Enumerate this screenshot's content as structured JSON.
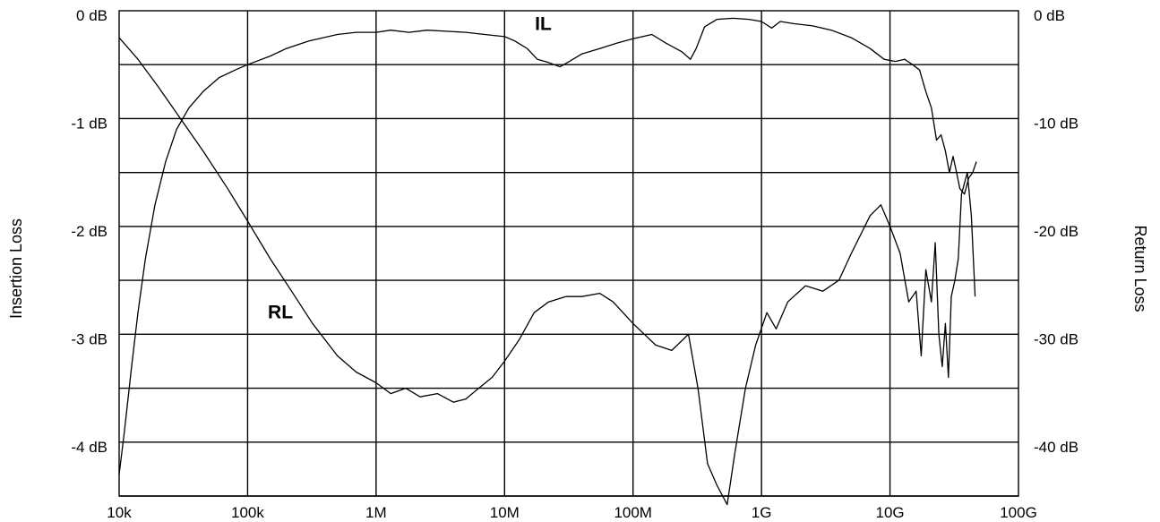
{
  "chart_data": {
    "type": "line",
    "xscale": "log",
    "xlim": [
      10000,
      100000000000
    ],
    "x_ticks": [
      10000,
      100000,
      1000000,
      10000000,
      100000000,
      1000000000,
      10000000000,
      100000000000
    ],
    "x_tick_labels": [
      "10k",
      "100k",
      "1M",
      "10M",
      "100M",
      "1G",
      "10G",
      "100G"
    ],
    "left_axis": {
      "label": "Insertion Loss",
      "ylim": [
        -4.5,
        0
      ],
      "ticks": [
        0,
        -1,
        -2,
        -3,
        -4
      ],
      "tick_labels": [
        "0 dB",
        "-1 dB",
        "-2 dB",
        "-3 dB",
        "-4 dB"
      ]
    },
    "right_axis": {
      "label": "Return Loss",
      "ylim": [
        -45,
        0
      ],
      "ticks": [
        0,
        -10,
        -20,
        -30,
        -40
      ],
      "tick_labels": [
        "0 dB",
        "-10 dB",
        "-20 dB",
        "-30 dB",
        "-40 dB"
      ]
    },
    "grid": true,
    "series": [
      {
        "name": "IL",
        "axis": "left",
        "label_at": [
          20000000,
          -0.18
        ],
        "points": [
          [
            10000,
            -4.3
          ],
          [
            11000,
            -3.9
          ],
          [
            12500,
            -3.3
          ],
          [
            14000,
            -2.8
          ],
          [
            16000,
            -2.3
          ],
          [
            19000,
            -1.8
          ],
          [
            23000,
            -1.4
          ],
          [
            28000,
            -1.1
          ],
          [
            35000,
            -0.9
          ],
          [
            45000,
            -0.75
          ],
          [
            60000,
            -0.62
          ],
          [
            80000,
            -0.55
          ],
          [
            100000,
            -0.5
          ],
          [
            150000,
            -0.42
          ],
          [
            200000,
            -0.35
          ],
          [
            300000,
            -0.28
          ],
          [
            500000,
            -0.22
          ],
          [
            700000,
            -0.2
          ],
          [
            1000000,
            -0.2
          ],
          [
            1300000,
            -0.18
          ],
          [
            1800000,
            -0.2
          ],
          [
            2500000,
            -0.18
          ],
          [
            3500000,
            -0.19
          ],
          [
            5000000,
            -0.2
          ],
          [
            7000000,
            -0.22
          ],
          [
            10000000,
            -0.24
          ],
          [
            12000000,
            -0.28
          ],
          [
            15000000,
            -0.35
          ],
          [
            18000000,
            -0.45
          ],
          [
            22000000,
            -0.48
          ],
          [
            27000000,
            -0.52
          ],
          [
            32000000,
            -0.47
          ],
          [
            40000000,
            -0.4
          ],
          [
            55000000,
            -0.35
          ],
          [
            75000000,
            -0.3
          ],
          [
            100000000,
            -0.26
          ],
          [
            140000000,
            -0.22
          ],
          [
            180000000,
            -0.3
          ],
          [
            240000000,
            -0.38
          ],
          [
            280000000,
            -0.45
          ],
          [
            310000000,
            -0.35
          ],
          [
            360000000,
            -0.15
          ],
          [
            450000000,
            -0.08
          ],
          [
            600000000,
            -0.07
          ],
          [
            800000000,
            -0.08
          ],
          [
            1000000000,
            -0.1
          ],
          [
            1200000000,
            -0.16
          ],
          [
            1400000000,
            -0.1
          ],
          [
            1800000000,
            -0.12
          ],
          [
            2500000000,
            -0.14
          ],
          [
            3500000000,
            -0.18
          ],
          [
            5000000000,
            -0.25
          ],
          [
            7000000000,
            -0.35
          ],
          [
            9000000000,
            -0.45
          ],
          [
            11000000000,
            -0.47
          ],
          [
            13000000000,
            -0.45
          ],
          [
            15000000000,
            -0.5
          ],
          [
            17000000000,
            -0.55
          ],
          [
            19000000000,
            -0.75
          ],
          [
            21000000000,
            -0.9
          ],
          [
            23000000000,
            -1.2
          ],
          [
            25000000000,
            -1.15
          ],
          [
            27000000000,
            -1.3
          ],
          [
            29000000000,
            -1.5
          ],
          [
            31000000000,
            -1.35
          ],
          [
            33000000000,
            -1.5
          ],
          [
            35000000000,
            -1.65
          ],
          [
            38000000000,
            -1.7
          ],
          [
            41000000000,
            -1.55
          ],
          [
            44000000000,
            -1.5
          ],
          [
            47000000000,
            -1.4
          ]
        ]
      },
      {
        "name": "RL",
        "axis": "right",
        "label_at": [
          180000,
          -28.5
        ],
        "points": [
          [
            10000,
            -2.5
          ],
          [
            14000,
            -4.5
          ],
          [
            20000,
            -7
          ],
          [
            30000,
            -10
          ],
          [
            45000,
            -13
          ],
          [
            70000,
            -16.5
          ],
          [
            100000,
            -19.5
          ],
          [
            150000,
            -23
          ],
          [
            220000,
            -26
          ],
          [
            320000,
            -29
          ],
          [
            500000,
            -32
          ],
          [
            700000,
            -33.5
          ],
          [
            1000000,
            -34.5
          ],
          [
            1300000,
            -35.5
          ],
          [
            1700000,
            -35
          ],
          [
            2200000,
            -35.8
          ],
          [
            3000000,
            -35.5
          ],
          [
            4000000,
            -36.3
          ],
          [
            5000000,
            -36
          ],
          [
            6000000,
            -35.2
          ],
          [
            8000000,
            -34
          ],
          [
            10000000,
            -32.5
          ],
          [
            13000000,
            -30.5
          ],
          [
            17000000,
            -28
          ],
          [
            22000000,
            -27
          ],
          [
            30000000,
            -26.5
          ],
          [
            40000000,
            -26.5
          ],
          [
            55000000,
            -26.2
          ],
          [
            70000000,
            -27
          ],
          [
            100000000,
            -29
          ],
          [
            150000000,
            -31
          ],
          [
            200000000,
            -31.5
          ],
          [
            270000000,
            -30
          ],
          [
            320000000,
            -35
          ],
          [
            380000000,
            -42
          ],
          [
            450000000,
            -44
          ],
          [
            540000000,
            -45.8
          ],
          [
            620000000,
            -41
          ],
          [
            750000000,
            -35
          ],
          [
            900000000,
            -31
          ],
          [
            1100000000,
            -28
          ],
          [
            1300000000,
            -29.5
          ],
          [
            1600000000,
            -27
          ],
          [
            2200000000,
            -25.5
          ],
          [
            3000000000,
            -26
          ],
          [
            4000000000,
            -25
          ],
          [
            5000000000,
            -22.5
          ],
          [
            7000000000,
            -19
          ],
          [
            8500000000,
            -18
          ],
          [
            10000000000,
            -20
          ],
          [
            12000000000,
            -22.5
          ],
          [
            14000000000,
            -27
          ],
          [
            16000000000,
            -26
          ],
          [
            17500000000,
            -32
          ],
          [
            19000000000,
            -24
          ],
          [
            21000000000,
            -27
          ],
          [
            22500000000,
            -21.5
          ],
          [
            24000000000,
            -30
          ],
          [
            25500000000,
            -33
          ],
          [
            27000000000,
            -29
          ],
          [
            28500000000,
            -34
          ],
          [
            30000000000,
            -26.5
          ],
          [
            32000000000,
            -25
          ],
          [
            34000000000,
            -23
          ],
          [
            36000000000,
            -17
          ],
          [
            40000000000,
            -15
          ],
          [
            43000000000,
            -19
          ],
          [
            46000000000,
            -26.5
          ]
        ]
      }
    ]
  }
}
